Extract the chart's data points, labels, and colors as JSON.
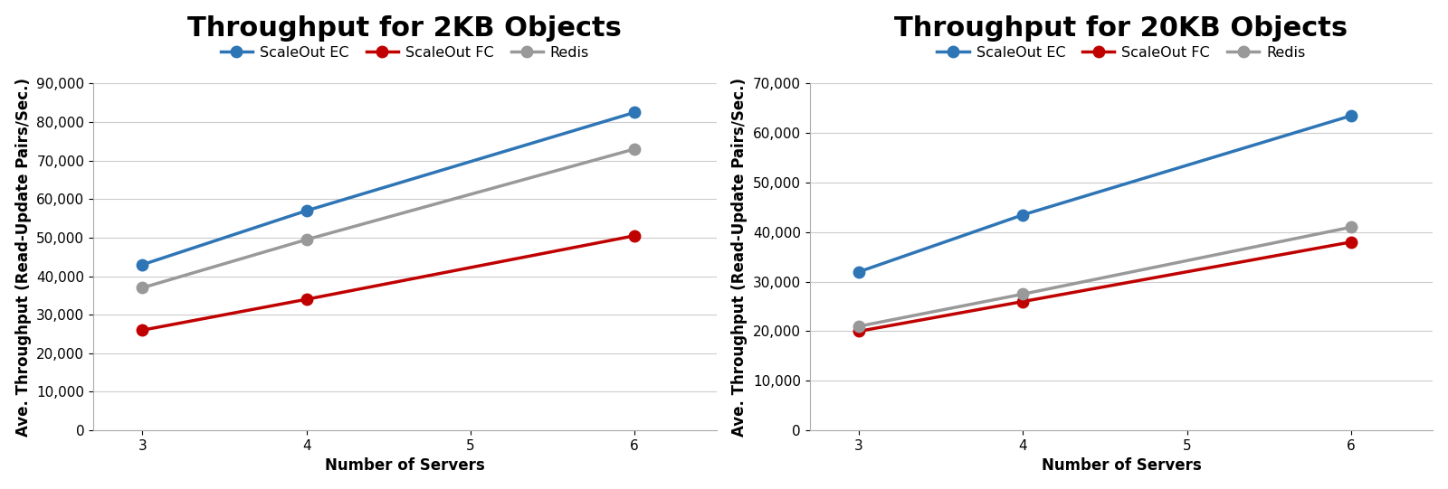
{
  "chart1": {
    "title": "Throughput for 2KB Objects",
    "series": {
      "ScaleOut EC": {
        "x": [
          3,
          4,
          6
        ],
        "y": [
          43000,
          57000,
          82500
        ],
        "color": "#2e75b6",
        "marker": "o"
      },
      "ScaleOut FC": {
        "x": [
          3,
          4,
          6
        ],
        "y": [
          26000,
          34000,
          50500
        ],
        "color": "#c00000",
        "marker": "o"
      },
      "Redis": {
        "x": [
          3,
          4,
          6
        ],
        "y": [
          37000,
          49500,
          73000
        ],
        "color": "#999999",
        "marker": "o"
      }
    },
    "ylim": [
      0,
      90000
    ],
    "yticks": [
      0,
      10000,
      20000,
      30000,
      40000,
      50000,
      60000,
      70000,
      80000,
      90000
    ],
    "xlim": [
      2.7,
      6.5
    ],
    "xticks": [
      3,
      4,
      5,
      6
    ],
    "xlabel": "Number of Servers",
    "ylabel": "Ave. Throughput (Read-Update Pairs/Sec.)"
  },
  "chart2": {
    "title": "Throughput for 20KB Objects",
    "series": {
      "ScaleOut EC": {
        "x": [
          3,
          4,
          6
        ],
        "y": [
          32000,
          43500,
          63500
        ],
        "color": "#2e75b6",
        "marker": "o"
      },
      "ScaleOut FC": {
        "x": [
          3,
          4,
          6
        ],
        "y": [
          20000,
          26000,
          38000
        ],
        "color": "#c00000",
        "marker": "o"
      },
      "Redis": {
        "x": [
          3,
          4,
          6
        ],
        "y": [
          21000,
          27500,
          41000
        ],
        "color": "#999999",
        "marker": "o"
      }
    },
    "ylim": [
      0,
      70000
    ],
    "yticks": [
      0,
      10000,
      20000,
      30000,
      40000,
      50000,
      60000,
      70000
    ],
    "xlim": [
      2.7,
      6.5
    ],
    "xticks": [
      3,
      4,
      5,
      6
    ],
    "xlabel": "Number of Servers",
    "ylabel": "Ave. Throughput (Read-Update Pairs/Sec.)"
  },
  "legend_order": [
    "ScaleOut EC",
    "ScaleOut FC",
    "Redis"
  ],
  "background_color": "#ffffff",
  "title_fontsize": 22,
  "label_fontsize": 12,
  "tick_fontsize": 11,
  "legend_fontsize": 11.5,
  "linewidth": 2.5,
  "markersize": 9
}
